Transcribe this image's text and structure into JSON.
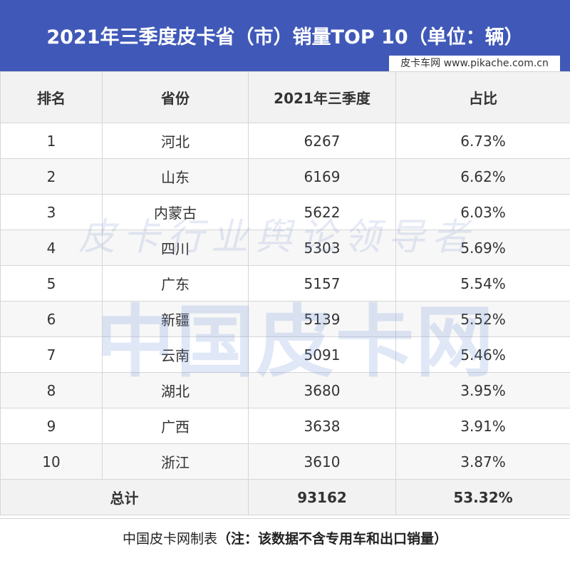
{
  "header": {
    "title": "2021年三季度皮卡省（市）销量TOP 10（单位：辆）",
    "site_label": "皮卡车网  www.pikache.com.cn"
  },
  "table": {
    "columns": [
      "排名",
      "省份",
      "2021年三季度",
      "占比"
    ],
    "rows": [
      [
        "1",
        "河北",
        "6267",
        "6.73%"
      ],
      [
        "2",
        "山东",
        "6169",
        "6.62%"
      ],
      [
        "3",
        "内蒙古",
        "5622",
        "6.03%"
      ],
      [
        "4",
        "四川",
        "5303",
        "5.69%"
      ],
      [
        "5",
        "广东",
        "5157",
        "5.54%"
      ],
      [
        "6",
        "新疆",
        "5139",
        "5.52%"
      ],
      [
        "7",
        "云南",
        "5091",
        "5.46%"
      ],
      [
        "8",
        "湖北",
        "3680",
        "3.95%"
      ],
      [
        "9",
        "广西",
        "3638",
        "3.91%"
      ],
      [
        "10",
        "浙江",
        "3610",
        "3.87%"
      ]
    ],
    "total": {
      "label": "总计",
      "sales": "93162",
      "share": "53.32%"
    }
  },
  "footer": {
    "source": "中国皮卡网制表",
    "note": "（注：该数据不含专用车和出口销量）"
  },
  "watermark": {
    "line1": "皮卡行业舆论领导者",
    "line2": "中国皮卡网"
  },
  "colors": {
    "header_bg": "#4059b8",
    "header_text": "#ffffff"
  }
}
